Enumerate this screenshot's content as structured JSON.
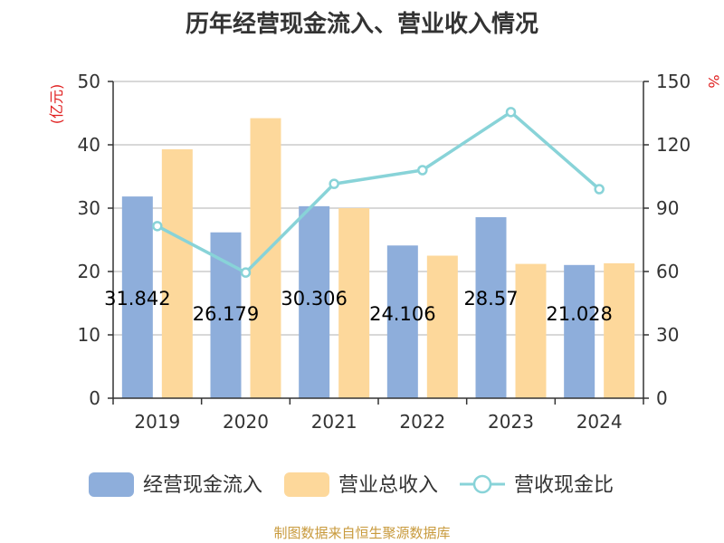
{
  "chart_data": {
    "type": "bar",
    "title": "历年经营现金流入、营业收入情况",
    "categories": [
      "2019",
      "2020",
      "2021",
      "2022",
      "2023",
      "2024"
    ],
    "y_left": {
      "unit": "(亿元)",
      "range": [
        0,
        50
      ],
      "ticks": [
        "0",
        "10",
        "20",
        "30",
        "40",
        "50"
      ]
    },
    "y_right": {
      "unit": "%",
      "range": [
        0,
        150
      ],
      "ticks": [
        "0",
        "30",
        "60",
        "90",
        "120",
        "150"
      ]
    },
    "series": [
      {
        "name": "经营现金流入",
        "type": "bar",
        "axis": "left",
        "color": "#8eaedb",
        "values": [
          31.842,
          26.179,
          30.306,
          24.106,
          28.57,
          21.028
        ],
        "labels": [
          "31.842",
          "26.179",
          "30.306",
          "24.106",
          "28.57",
          "21.028"
        ]
      },
      {
        "name": "营业总收入",
        "type": "bar",
        "axis": "left",
        "color": "#fdd89b",
        "values": [
          39.3,
          44.2,
          30.0,
          22.5,
          21.2,
          21.3
        ]
      },
      {
        "name": "营收现金比",
        "type": "line",
        "axis": "right",
        "color": "#88d3d8",
        "values": [
          81.5,
          59.5,
          101.5,
          108,
          135.5,
          99
        ]
      }
    ],
    "grid": true,
    "legend_position": "bottom",
    "unit_color": "#e02020"
  },
  "source": {
    "text": "制图数据来自恒生聚源数据库",
    "color": "#c89a3c"
  }
}
